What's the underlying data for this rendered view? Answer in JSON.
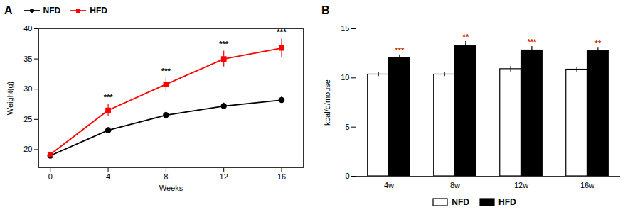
{
  "chart_data": [
    {
      "type": "line",
      "title": "A",
      "xlabel": "Weeks",
      "ylabel": "Weight(g)",
      "x": [
        0,
        4,
        8,
        12,
        16
      ],
      "series": [
        {
          "name": "NFD",
          "color": "#000000",
          "marker": "circle",
          "values": [
            19.0,
            23.2,
            25.7,
            27.2,
            28.2
          ],
          "errors": [
            0.3,
            0.5,
            0.5,
            0.5,
            0.5
          ]
        },
        {
          "name": "HFD",
          "color": "#ff0000",
          "marker": "square",
          "values": [
            19.2,
            26.5,
            30.8,
            35.0,
            36.8
          ],
          "errors": [
            0.3,
            1.0,
            1.2,
            1.3,
            1.5
          ]
        }
      ],
      "xlim": [
        -0.8,
        17.5
      ],
      "xticks": [
        0,
        4,
        8,
        12,
        16
      ],
      "ylim": [
        17,
        40
      ],
      "yticks": [
        20,
        25,
        30,
        35,
        40
      ],
      "legend": "upper left",
      "annotations": [
        {
          "text": "***",
          "x": 4,
          "y": 28.2
        },
        {
          "text": "***",
          "x": 8,
          "y": 32.5
        },
        {
          "text": "***",
          "x": 12,
          "y": 37.0
        },
        {
          "text": "***",
          "x": 16,
          "y": 39.0
        }
      ]
    },
    {
      "type": "bar",
      "title": "B",
      "ylabel": "kcal/d/mouse",
      "categories": [
        "4w",
        "8w",
        "12w",
        "16w"
      ],
      "series": [
        {
          "name": "NFD",
          "color": "#ffffff",
          "values": [
            10.35,
            10.35,
            10.9,
            10.85
          ],
          "errors": [
            0.2,
            0.2,
            0.3,
            0.25
          ]
        },
        {
          "name": "HFD",
          "color": "#000000",
          "values": [
            12.0,
            13.25,
            12.8,
            12.75
          ],
          "errors": [
            0.35,
            0.45,
            0.4,
            0.35
          ]
        }
      ],
      "ylim": [
        0,
        15
      ],
      "yticks": [
        0,
        5,
        10,
        15
      ],
      "legend": "bottom",
      "annotations": [
        {
          "text": "***",
          "category": "4w",
          "series": "HFD",
          "y": 12.5,
          "color": "#cc3300"
        },
        {
          "text": "**",
          "category": "8w",
          "series": "HFD",
          "y": 13.85,
          "color": "#cc3300"
        },
        {
          "text": "***",
          "category": "12w",
          "series": "HFD",
          "y": 13.35,
          "color": "#cc3300"
        },
        {
          "text": "**",
          "category": "16w",
          "series": "HFD",
          "y": 13.25,
          "color": "#cc3300"
        }
      ]
    }
  ]
}
